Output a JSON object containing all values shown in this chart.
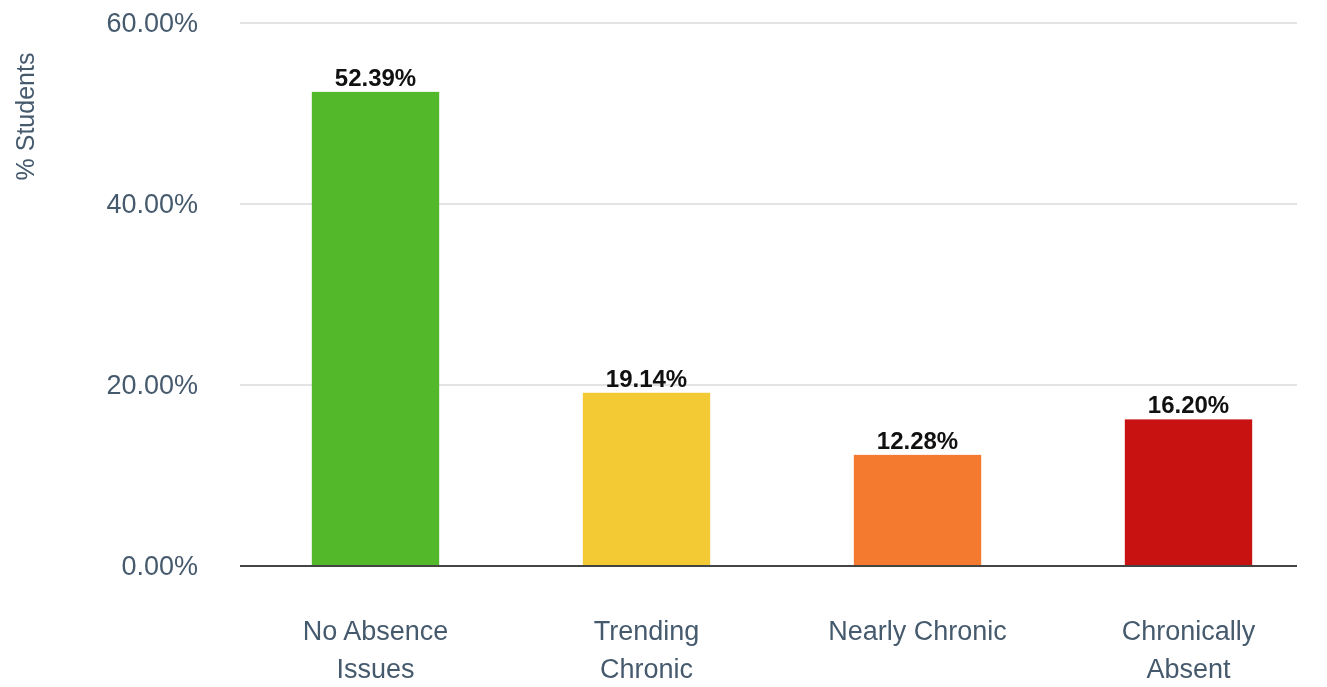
{
  "chart_data": {
    "type": "bar",
    "ylabel": "% Students",
    "categories": [
      "No Absence Issues",
      "Trending Chronic",
      "Nearly Chronic",
      "Chronically Absent"
    ],
    "values": [
      52.39,
      19.14,
      12.28,
      16.2
    ],
    "colors": [
      "#53b82a",
      "#f4ca34",
      "#f47a30",
      "#c81212"
    ],
    "value_labels": [
      "52.39%",
      "19.14%",
      "12.28%",
      "16.20%"
    ],
    "ylim": [
      0,
      60
    ],
    "yticks": [
      {
        "value": 0,
        "label": "0.00%"
      },
      {
        "value": 20,
        "label": "20.00%"
      },
      {
        "value": 40,
        "label": "40.00%"
      },
      {
        "value": 60,
        "label": "60.00%"
      }
    ],
    "grid": "y"
  }
}
